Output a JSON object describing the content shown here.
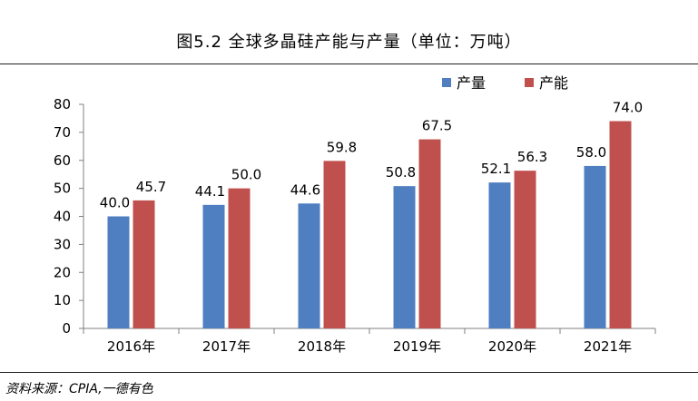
{
  "title": "图5.2 全球多晶硅产能与产量（单位：万吨）",
  "source": "资料来源：CPIA,一德有色",
  "colors": {
    "production": "#4F7EC1",
    "capacity": "#C0504D",
    "axis": "#808080"
  },
  "chart_data": {
    "type": "bar",
    "title": "图5.2 全球多晶硅产能与产量（单位：万吨）",
    "categories": [
      "2016年",
      "2017年",
      "2018年",
      "2019年",
      "2020年",
      "2021年"
    ],
    "series": [
      {
        "name": "产量",
        "values": [
          40.0,
          44.1,
          44.6,
          50.8,
          52.1,
          58.0
        ]
      },
      {
        "name": "产能",
        "values": [
          45.7,
          50.0,
          59.8,
          67.5,
          56.3,
          74.0
        ]
      }
    ],
    "data_labels": [
      [
        "40.0",
        "44.1",
        "44.6",
        "50.8",
        "52.1",
        "58.0"
      ],
      [
        "45.7",
        "50.0",
        "59.8",
        "67.5",
        "56.3",
        "74.0"
      ]
    ],
    "yticks": [
      "0",
      "10",
      "20",
      "30",
      "40",
      "50",
      "60",
      "70",
      "80"
    ],
    "ylim": [
      0,
      80
    ],
    "grid": false,
    "legend": "top-right"
  }
}
